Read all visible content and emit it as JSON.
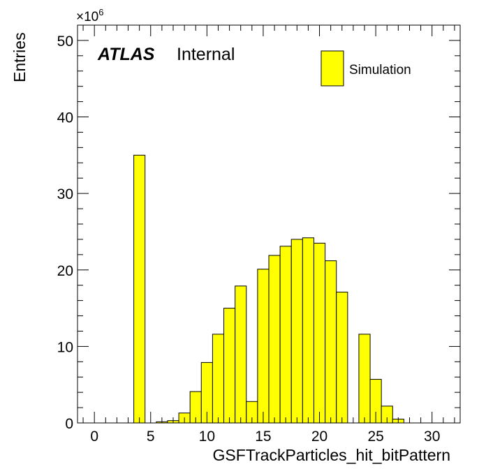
{
  "chart_data": {
    "type": "bar",
    "title": "",
    "xlabel": "GSFTrackParticles_hit_bitPattern",
    "ylabel": "Entries",
    "multiplier_base": "×10",
    "multiplier_exp": "6",
    "xlim": [
      -1.5,
      32.5
    ],
    "ylim": [
      0,
      52
    ],
    "bin_width": 1,
    "x_ticks": [
      0,
      5,
      10,
      15,
      20,
      25,
      30
    ],
    "x_tick_labels": [
      "0",
      "5",
      "10",
      "15",
      "20",
      "25",
      "30"
    ],
    "y_ticks": [
      0,
      10,
      20,
      30,
      40,
      50
    ],
    "y_tick_labels": [
      "0",
      "10",
      "20",
      "30",
      "40",
      "50"
    ],
    "bins": [
      {
        "x": 4,
        "y": 35.0
      },
      {
        "x": 6,
        "y": 0.15
      },
      {
        "x": 7,
        "y": 0.3
      },
      {
        "x": 8,
        "y": 1.3
      },
      {
        "x": 9,
        "y": 4.1
      },
      {
        "x": 10,
        "y": 7.9
      },
      {
        "x": 11,
        "y": 11.6
      },
      {
        "x": 12,
        "y": 15.0
      },
      {
        "x": 13,
        "y": 17.9
      },
      {
        "x": 14,
        "y": 2.8
      },
      {
        "x": 15,
        "y": 20.1
      },
      {
        "x": 16,
        "y": 21.9
      },
      {
        "x": 17,
        "y": 23.1
      },
      {
        "x": 18,
        "y": 24.0
      },
      {
        "x": 19,
        "y": 24.2
      },
      {
        "x": 20,
        "y": 23.5
      },
      {
        "x": 21,
        "y": 21.2
      },
      {
        "x": 22,
        "y": 17.1
      },
      {
        "x": 24,
        "y": 11.6
      },
      {
        "x": 25,
        "y": 5.7
      },
      {
        "x": 26,
        "y": 2.2
      },
      {
        "x": 27,
        "y": 0.5
      }
    ],
    "series": [
      {
        "name": "Simulation",
        "color": "#ffff00"
      }
    ],
    "legend_position": "top-right",
    "grid": false,
    "annotation": {
      "bold": "ATLAS",
      "text": "Internal"
    }
  }
}
